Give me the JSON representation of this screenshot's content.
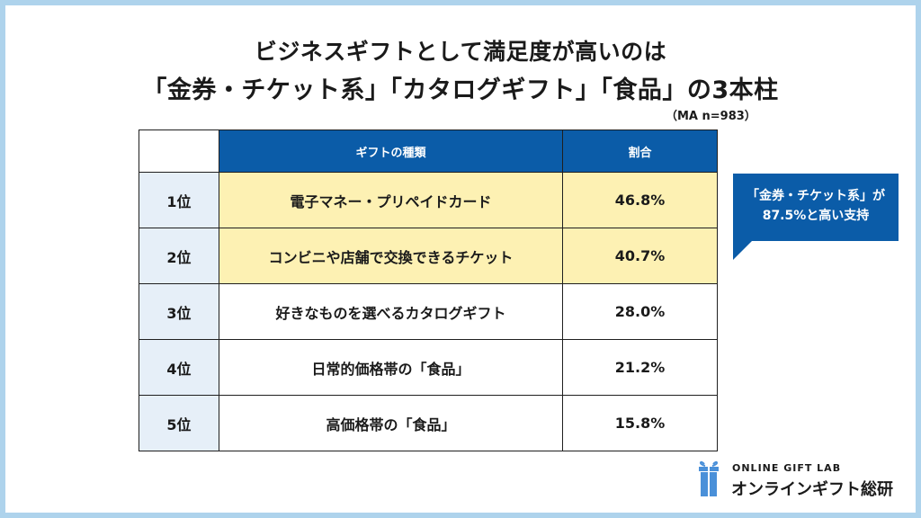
{
  "title_line1": "ビジネスギフトとして満足度が高いのは",
  "title_line2": "「金券・チケット系」「カタログギフト」「食品」の3本柱",
  "sample_note": "（MA n=983）",
  "table": {
    "headers": {
      "kind": "ギフトの種類",
      "ratio": "割合"
    },
    "rows": [
      {
        "rank": "1位",
        "kind": "電子マネー・プリペイドカード",
        "ratio": "46.8%"
      },
      {
        "rank": "2位",
        "kind": "コンビニや店舗で交換できるチケット",
        "ratio": "40.7%"
      },
      {
        "rank": "3位",
        "kind": "好きなものを選べるカタログギフト",
        "ratio": "28.0%"
      },
      {
        "rank": "4位",
        "kind": "日常的価格帯の「食品」",
        "ratio": "21.2%"
      },
      {
        "rank": "5位",
        "kind": "高価格帯の「食品」",
        "ratio": "15.8%"
      }
    ]
  },
  "callout": {
    "line1": "「金券・チケット系」が",
    "line2": "87.5%と高い支持"
  },
  "logo": {
    "en": "ONLINE GIFT LAB",
    "jp": "オンラインギフト総研",
    "icon": "gift-box-icon"
  },
  "colors": {
    "header_blue": "#0b5ca8",
    "highlight_yellow": "#fdf1b3",
    "rank_blue": "#e6eff8",
    "frame": "#aed3ec"
  }
}
